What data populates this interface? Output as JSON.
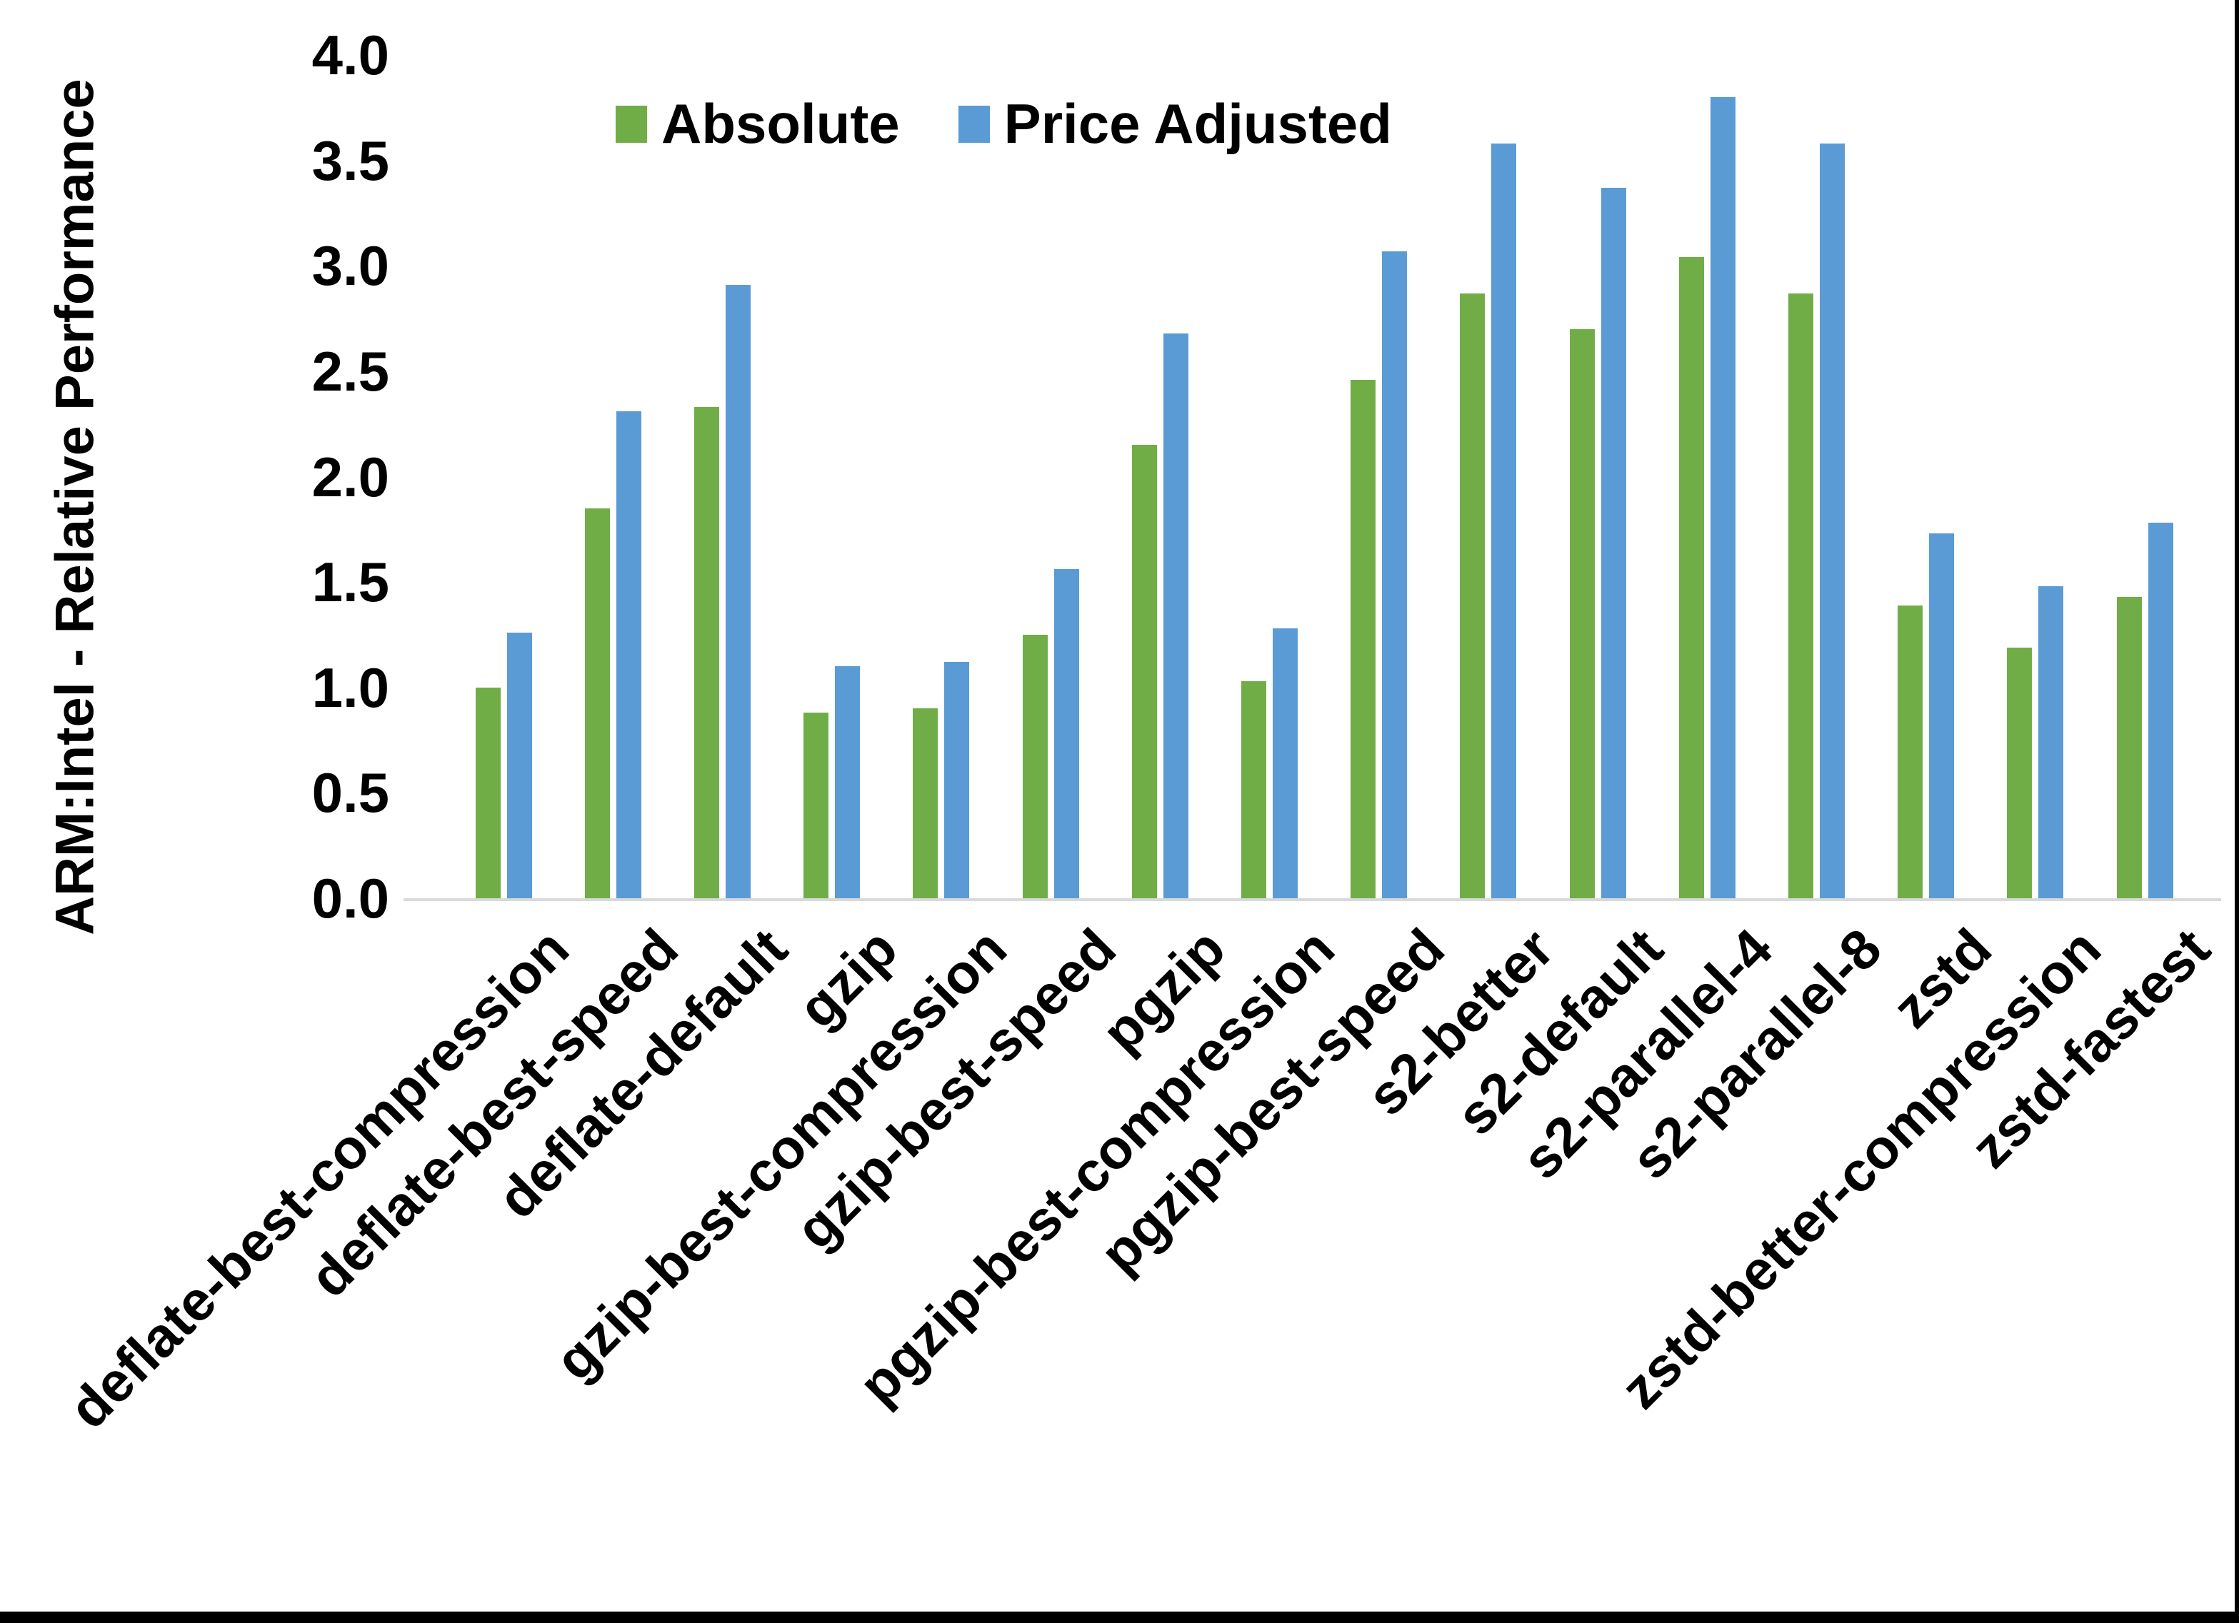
{
  "page": {
    "background": "#FFFFFF",
    "frame_border_color": "#000000"
  },
  "chart_data": {
    "type": "bar",
    "title": "",
    "xlabel": "",
    "ylabel": "ARM:Intel - Relative Performance",
    "ylim": [
      0.0,
      4.0
    ],
    "ytick_step": 0.5,
    "ytick_labels": [
      "0.0",
      "0.5",
      "1.0",
      "1.5",
      "2.0",
      "2.5",
      "3.0",
      "3.5",
      "4.0"
    ],
    "grid": false,
    "legend_position": "top-center",
    "axis_line_color": "#D9D9D9",
    "categories": [
      "deflate-best-compression",
      "deflate-best-speed",
      "deflate-default",
      "gzip",
      "gzip-best-compression",
      "gzip-best-speed",
      "pgzip",
      "pgzip-best-compression",
      "pgzip-best-speed",
      "s2-better",
      "s2-default",
      "s2-parallel-4",
      "s2-parallel-8",
      "zstd",
      "zstd-better-compression",
      "zstd-fastest"
    ],
    "series": [
      {
        "name": "Absolute",
        "color": "#70AD47",
        "values": [
          1.0,
          1.85,
          2.33,
          0.88,
          0.9,
          1.25,
          2.15,
          1.03,
          2.46,
          2.87,
          2.7,
          3.04,
          2.87,
          1.39,
          1.19,
          1.43
        ]
      },
      {
        "name": "Price Adjusted",
        "color": "#5B9BD5",
        "values": [
          1.26,
          2.31,
          2.91,
          1.1,
          1.12,
          1.56,
          2.68,
          1.28,
          3.07,
          3.58,
          3.37,
          3.8,
          3.58,
          1.73,
          1.48,
          1.78
        ]
      }
    ]
  }
}
